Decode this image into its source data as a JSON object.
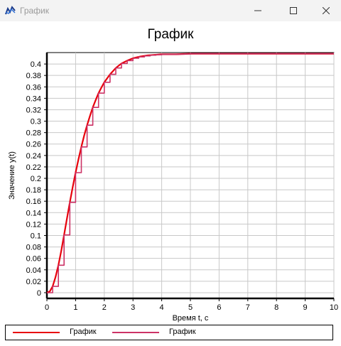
{
  "window": {
    "title": "График",
    "icon": "chart-app-icon",
    "controls": [
      "minimize-icon",
      "maximize-icon",
      "close-icon"
    ]
  },
  "chart_data": {
    "type": "line",
    "title": "График",
    "xlabel": "Время t, с",
    "ylabel": "Значение y(t)",
    "xlim": [
      0,
      10
    ],
    "ylim": [
      -0.01,
      0.42
    ],
    "x_ticks": [
      "0",
      "1",
      "2",
      "3",
      "4",
      "5",
      "6",
      "7",
      "8",
      "9",
      "10"
    ],
    "y_ticks": [
      "0",
      "0.02",
      "0.04",
      "0.06",
      "0.08",
      "0.1",
      "0.12",
      "0.14",
      "0.16",
      "0.18",
      "0.2",
      "0.22",
      "0.24",
      "0.26",
      "0.28",
      "0.3",
      "0.32",
      "0.34",
      "0.36",
      "0.38",
      "0.4"
    ],
    "grid": true,
    "legend_position": "bottom",
    "series": [
      {
        "name": "График",
        "color": "#e8000b",
        "style": "line",
        "x": [
          0,
          0.1,
          0.2,
          0.3,
          0.4,
          0.5,
          0.6,
          0.7,
          0.8,
          0.9,
          1.0,
          1.1,
          1.2,
          1.3,
          1.4,
          1.5,
          1.6,
          1.7,
          1.8,
          1.9,
          2.0,
          2.2,
          2.4,
          2.6,
          2.8,
          3.0,
          3.25,
          3.5,
          3.75,
          4.0,
          4.5,
          5.0,
          6.0,
          7.0,
          8.0,
          9.0,
          10.0
        ],
        "y": [
          0.0,
          0.002,
          0.011,
          0.027,
          0.048,
          0.073,
          0.101,
          0.13,
          0.158,
          0.185,
          0.21,
          0.233,
          0.255,
          0.275,
          0.293,
          0.309,
          0.324,
          0.337,
          0.349,
          0.359,
          0.368,
          0.382,
          0.393,
          0.401,
          0.406,
          0.41,
          0.413,
          0.415,
          0.416,
          0.417,
          0.417,
          0.418,
          0.418,
          0.418,
          0.418,
          0.418,
          0.418
        ]
      },
      {
        "name": "График",
        "color": "#cc3366",
        "style": "step",
        "x": [
          0,
          0.1,
          0.2,
          0.3,
          0.4,
          0.5,
          0.6,
          0.7,
          0.8,
          0.9,
          1.0,
          1.1,
          1.2,
          1.3,
          1.4,
          1.5,
          1.6,
          1.7,
          1.8,
          1.9,
          2.0,
          2.2,
          2.4,
          2.6,
          2.8,
          3.0,
          3.25,
          3.5,
          3.75,
          4.0,
          4.5,
          5.0,
          6.0,
          7.0,
          8.0,
          9.0,
          10.0
        ],
        "y": [
          0.0,
          0.002,
          0.011,
          0.027,
          0.048,
          0.073,
          0.101,
          0.13,
          0.158,
          0.185,
          0.21,
          0.233,
          0.255,
          0.275,
          0.293,
          0.309,
          0.324,
          0.337,
          0.349,
          0.359,
          0.368,
          0.382,
          0.393,
          0.401,
          0.406,
          0.41,
          0.413,
          0.415,
          0.416,
          0.417,
          0.417,
          0.418,
          0.418,
          0.418,
          0.418,
          0.418,
          0.418
        ]
      }
    ]
  }
}
